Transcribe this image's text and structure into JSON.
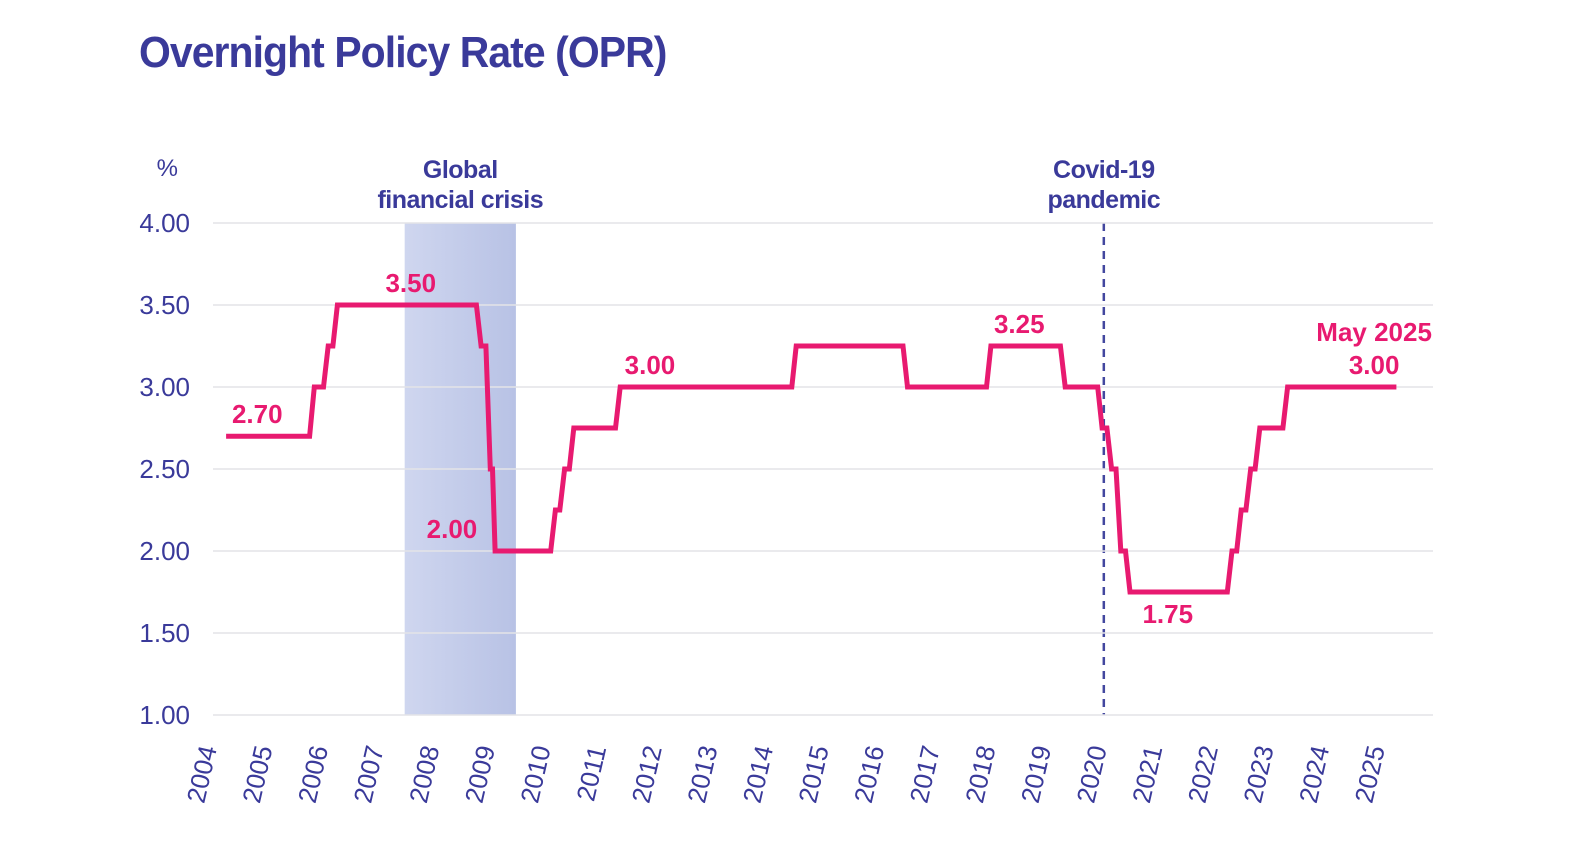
{
  "title": "Overnight Policy Rate (OPR)",
  "colors": {
    "line": "#E81A70",
    "text_blue": "#3A3A9A",
    "grid": "#E4E4E7",
    "band_from": "#CFD6EF",
    "band_to": "#B8C2E5",
    "dash_line": "#43479F",
    "background": "#FFFFFF"
  },
  "chart_data": {
    "type": "line",
    "title": "Overnight Policy Rate (OPR)",
    "xlabel": "",
    "ylabel": "%",
    "ylim": [
      1.0,
      4.0
    ],
    "grid": true,
    "legend_position": "none",
    "y_axis": {
      "unit": "%",
      "ticks": [
        "4.00",
        "3.50",
        "3.00",
        "2.50",
        "2.00",
        "1.50",
        "1.00"
      ]
    },
    "x_axis": {
      "ticks": [
        "2004",
        "2005",
        "2006",
        "2007",
        "2008",
        "2009",
        "2010",
        "2011",
        "2012",
        "2013",
        "2014",
        "2015",
        "2016",
        "2017",
        "2018",
        "2019",
        "2020",
        "2021",
        "2022",
        "2023",
        "2024",
        "2025"
      ]
    },
    "series": [
      {
        "name": "OPR",
        "points": [
          [
            2004.29,
            2.7
          ],
          [
            2005.79,
            2.7
          ],
          [
            2005.875,
            3.0
          ],
          [
            2006.04,
            3.0
          ],
          [
            2006.125,
            3.25
          ],
          [
            2006.21,
            3.25
          ],
          [
            2006.29,
            3.5
          ],
          [
            2008.79,
            3.5
          ],
          [
            2008.875,
            3.25
          ],
          [
            2008.96,
            3.25
          ],
          [
            2009.04,
            2.5
          ],
          [
            2009.08,
            2.5
          ],
          [
            2009.125,
            2.0
          ],
          [
            2010.125,
            2.0
          ],
          [
            2010.21,
            2.25
          ],
          [
            2010.29,
            2.25
          ],
          [
            2010.375,
            2.5
          ],
          [
            2010.46,
            2.5
          ],
          [
            2010.54,
            2.75
          ],
          [
            2011.29,
            2.75
          ],
          [
            2011.375,
            3.0
          ],
          [
            2014.46,
            3.0
          ],
          [
            2014.54,
            3.25
          ],
          [
            2016.46,
            3.25
          ],
          [
            2016.54,
            3.0
          ],
          [
            2017.96,
            3.0
          ],
          [
            2018.04,
            3.25
          ],
          [
            2019.29,
            3.25
          ],
          [
            2019.375,
            3.0
          ],
          [
            2019.96,
            3.0
          ],
          [
            2020.04,
            2.75
          ],
          [
            2020.125,
            2.75
          ],
          [
            2020.21,
            2.5
          ],
          [
            2020.29,
            2.5
          ],
          [
            2020.375,
            2.0
          ],
          [
            2020.46,
            2.0
          ],
          [
            2020.54,
            1.75
          ],
          [
            2022.29,
            1.75
          ],
          [
            2022.375,
            2.0
          ],
          [
            2022.46,
            2.0
          ],
          [
            2022.54,
            2.25
          ],
          [
            2022.625,
            2.25
          ],
          [
            2022.71,
            2.5
          ],
          [
            2022.79,
            2.5
          ],
          [
            2022.875,
            2.75
          ],
          [
            2023.29,
            2.75
          ],
          [
            2023.375,
            3.0
          ],
          [
            2025.33,
            3.0
          ]
        ]
      }
    ],
    "point_labels": [
      {
        "text": "2.70",
        "year": 2004.85,
        "value": 2.7,
        "position": "above"
      },
      {
        "text": "3.50",
        "year": 2007.61,
        "value": 3.5,
        "position": "above"
      },
      {
        "text": "2.00",
        "year": 2008.35,
        "value": 2.0,
        "position": "above"
      },
      {
        "text": "3.00",
        "year": 2011.91,
        "value": 3.0,
        "position": "above"
      },
      {
        "text": "3.25",
        "year": 2018.55,
        "value": 3.25,
        "position": "above"
      },
      {
        "text": "1.75",
        "year": 2021.22,
        "value": 1.75,
        "position": "below"
      },
      {
        "lines": [
          "May 2025",
          "3.00"
        ],
        "year": 2024.93,
        "value": 3.0,
        "position": "above"
      }
    ],
    "regions": [
      {
        "kind": "band",
        "label_lines": [
          "Global",
          "financial crisis"
        ],
        "from": 2007.5,
        "to": 2009.5
      },
      {
        "kind": "event-line",
        "label_lines": [
          "Covid-19",
          "pandemic"
        ],
        "year": 2020.07
      }
    ]
  }
}
